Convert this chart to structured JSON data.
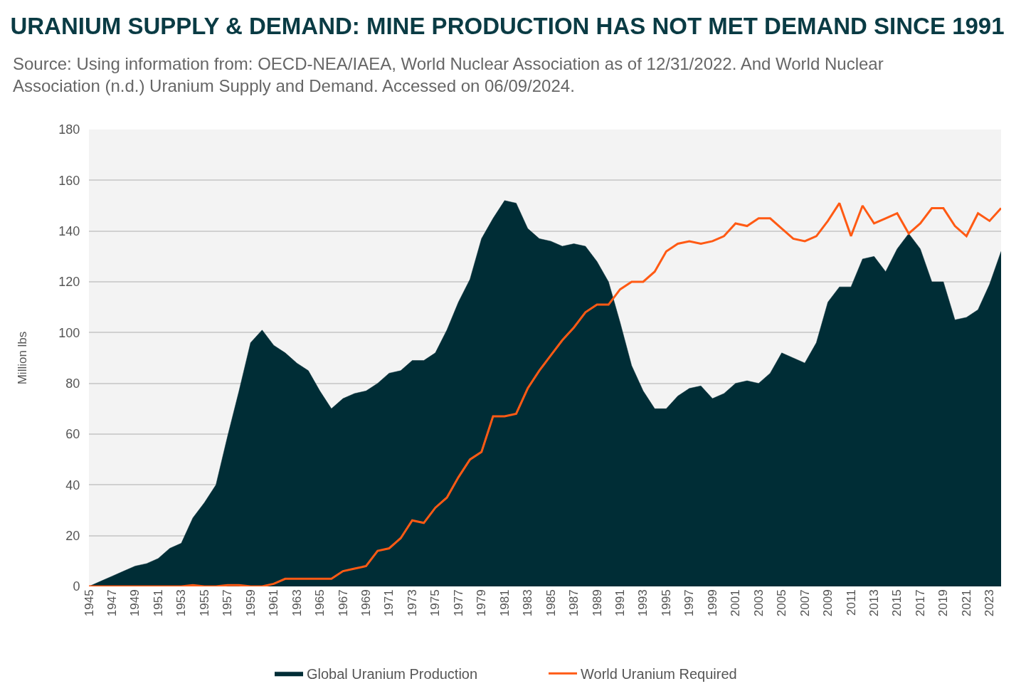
{
  "chart_data": {
    "type": "area",
    "title": "URANIUM SUPPLY & DEMAND: MINE PRODUCTION HAS NOT MET DEMAND SINCE 1991",
    "annotations": [
      "Source: Using information from: OECD-NEA/IAEA, World Nuclear Association as of 12/31/2022. And World Nuclear Association (n.d.) Uranium Supply and Demand. Accessed on 06/09/2024."
    ],
    "ylabel": "Million lbs",
    "x": [
      1945,
      1946,
      1947,
      1948,
      1949,
      1950,
      1951,
      1952,
      1953,
      1954,
      1955,
      1956,
      1957,
      1958,
      1959,
      1960,
      1961,
      1962,
      1963,
      1964,
      1965,
      1966,
      1967,
      1968,
      1969,
      1970,
      1971,
      1972,
      1973,
      1974,
      1975,
      1976,
      1977,
      1978,
      1979,
      1980,
      1981,
      1982,
      1983,
      1984,
      1985,
      1986,
      1987,
      1988,
      1989,
      1990,
      1991,
      1992,
      1993,
      1994,
      1995,
      1996,
      1997,
      1998,
      1999,
      2000,
      2001,
      2002,
      2003,
      2004,
      2005,
      2006,
      2007,
      2008,
      2009,
      2010,
      2011,
      2012,
      2013,
      2014,
      2015,
      2016,
      2017,
      2018,
      2019,
      2020,
      2021,
      2022,
      2023,
      2024
    ],
    "series": [
      {
        "name": "Global Uranium Production",
        "color": "#002d36",
        "values": [
          0,
          2,
          4,
          6,
          8,
          9,
          11,
          15,
          17,
          27,
          33,
          40,
          59,
          77,
          96,
          101,
          95,
          92,
          88,
          85,
          77,
          70,
          74,
          76,
          77,
          80,
          84,
          85,
          89,
          89,
          92,
          101,
          112,
          121,
          137,
          145,
          152,
          151,
          141,
          137,
          136,
          134,
          135,
          134,
          128,
          120,
          104,
          87,
          77,
          70,
          70,
          75,
          78,
          79,
          74,
          76,
          80,
          81,
          80,
          84,
          92,
          90,
          88,
          96,
          112,
          118,
          118,
          129,
          130,
          124,
          133,
          139,
          133,
          120,
          120,
          105,
          106,
          109,
          119,
          132
        ]
      },
      {
        "name": "World Uranium Required",
        "type": "line",
        "color": "#ff5a14",
        "values": [
          0,
          0,
          0,
          0,
          0,
          0,
          0,
          0,
          0,
          0.5,
          0,
          0,
          0.5,
          0.5,
          0,
          0,
          1,
          3,
          3,
          3,
          3,
          3,
          6,
          7,
          8,
          14,
          15,
          19,
          26,
          25,
          31,
          35,
          43,
          50,
          53,
          67,
          67,
          68,
          78,
          85,
          91,
          97,
          102,
          108,
          111,
          111,
          117,
          120,
          120,
          124,
          132,
          135,
          136,
          135,
          136,
          138,
          143,
          142,
          145,
          145,
          141,
          137,
          136,
          138,
          144,
          151,
          138,
          150,
          143,
          145,
          147,
          139,
          143,
          149,
          149,
          142,
          138,
          147,
          144,
          149
        ]
      }
    ],
    "xlim": [
      1945,
      2024
    ],
    "xticks": [
      1945,
      1947,
      1949,
      1951,
      1953,
      1955,
      1957,
      1959,
      1961,
      1963,
      1965,
      1967,
      1969,
      1971,
      1973,
      1975,
      1977,
      1979,
      1981,
      1983,
      1985,
      1987,
      1989,
      1991,
      1993,
      1995,
      1997,
      1999,
      2001,
      2003,
      2005,
      2007,
      2009,
      2011,
      2013,
      2015,
      2017,
      2019,
      2021,
      2023
    ],
    "ylim": [
      0,
      180
    ],
    "yticks": [
      0,
      20,
      40,
      60,
      80,
      100,
      120,
      140,
      160,
      180
    ],
    "grid": "y",
    "legend": "bottom"
  }
}
